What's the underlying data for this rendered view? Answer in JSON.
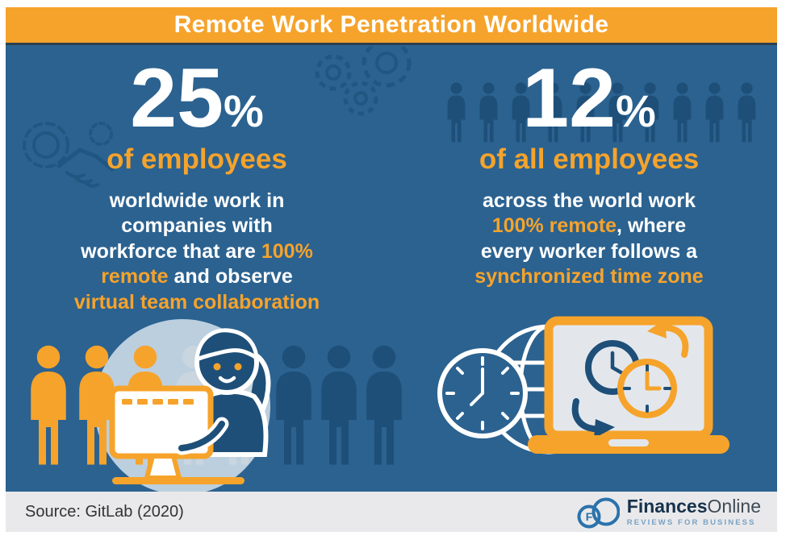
{
  "title": "Remote Work Penetration Worldwide",
  "left_stat": {
    "value": "25",
    "unit": "%",
    "label": "of employees",
    "lines": [
      [
        {
          "t": "worldwide work in",
          "c": "w"
        }
      ],
      [
        {
          "t": "companies with",
          "c": "w"
        }
      ],
      [
        {
          "t": "workforce that are ",
          "c": "w"
        },
        {
          "t": "100%",
          "c": "o"
        }
      ],
      [
        {
          "t": "remote",
          "c": "o"
        },
        {
          "t": " and observe",
          "c": "w"
        }
      ],
      [
        {
          "t": "virtual team collaboration",
          "c": "o"
        }
      ]
    ]
  },
  "right_stat": {
    "value": "12",
    "unit": "%",
    "label": "of all employees",
    "lines": [
      [
        {
          "t": "across the world work",
          "c": "w"
        }
      ],
      [
        {
          "t": "100% remote",
          "c": "o"
        },
        {
          "t": ", where",
          "c": "w"
        }
      ],
      [
        {
          "t": "every worker follows a",
          "c": "w"
        }
      ],
      [
        {
          "t": "synchronized time zone",
          "c": "o"
        }
      ]
    ]
  },
  "footer": {
    "source": "Source: GitLab (2020)",
    "logo_monogram": "F",
    "logo_finances": "Finances",
    "logo_online": "Online",
    "logo_tagline": "REVIEWS FOR BUSINESS"
  },
  "illustrations": {
    "decorative_icons": [
      "handshake-gear-icon",
      "gears-icon",
      "person-icon",
      "woman-at-computer-illustration",
      "globe-clock-icon",
      "laptop-timezone-sync-icon",
      "cloud-logo-icon"
    ],
    "left_people_colors": [
      "orange",
      "orange",
      "orange",
      "pale",
      "pale",
      "navy",
      "navy",
      "navy"
    ],
    "left_people_x": [
      26,
      86,
      146,
      206,
      262,
      330,
      386,
      442
    ],
    "right_people": {
      "count": 10,
      "color": "navy"
    }
  },
  "colors": {
    "orange": "#F6A32B",
    "blue_bg": "#2B6290",
    "navy": "#1E4F78",
    "circle": "#BCCFDE",
    "footer_bg": "#E9E9EB",
    "logo_blue": "#2A72AB"
  },
  "chart_data": {
    "type": "table",
    "title": "Remote Work Penetration Worldwide",
    "categories": [
      "Employees worldwide in companies with 100% remote workforce observing virtual team collaboration",
      "Employees across the world working 100% remote where every worker follows a synchronized time zone"
    ],
    "values": [
      25,
      12
    ],
    "unit": "%",
    "source": "GitLab (2020)",
    "legend_position": "none",
    "grid": false
  }
}
